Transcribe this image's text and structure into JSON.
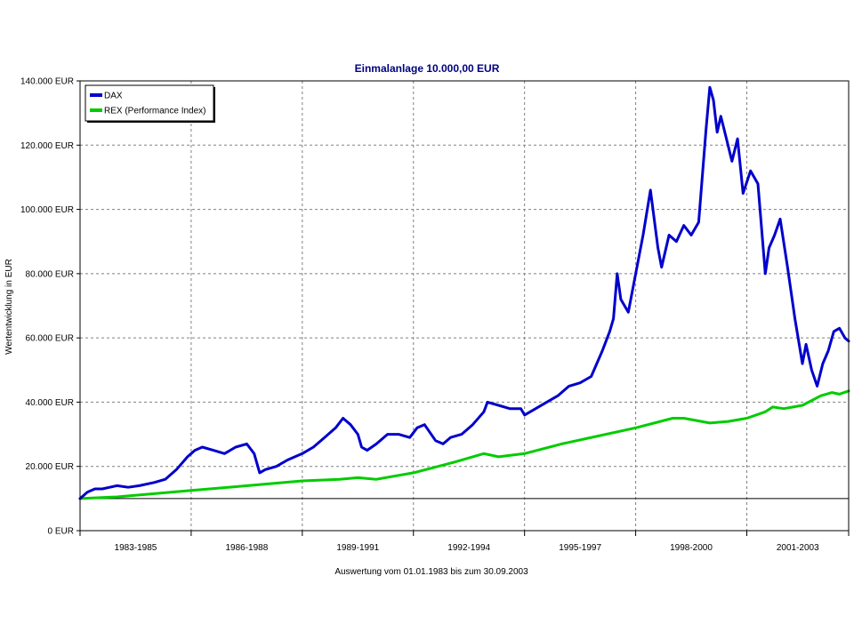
{
  "chart_data": {
    "type": "line",
    "title": "Einmalanlage 10.000,00 EUR",
    "xlabel": "Auswertung vom 01.01.1983 bis zum 30.09.2003",
    "ylabel": "Wertentwicklung in EUR",
    "ylim": [
      0,
      140000
    ],
    "xlim": [
      1983.0,
      2003.75
    ],
    "y_ticks": [
      0,
      20000,
      40000,
      60000,
      80000,
      100000,
      120000,
      140000
    ],
    "y_tick_labels": [
      "0 EUR",
      "20.000 EUR",
      "40.000 EUR",
      "60.000 EUR",
      "80.000 EUR",
      "100.000 EUR",
      "120.000 EUR",
      "140.000 EUR"
    ],
    "x_groups": [
      {
        "label": "1983-1985",
        "start": 1983,
        "end": 1986
      },
      {
        "label": "1986-1988",
        "start": 1986,
        "end": 1989
      },
      {
        "label": "1989-1991",
        "start": 1989,
        "end": 1992
      },
      {
        "label": "1992-1994",
        "start": 1992,
        "end": 1995
      },
      {
        "label": "1995-1997",
        "start": 1995,
        "end": 1998
      },
      {
        "label": "1998-2000",
        "start": 1998,
        "end": 2001
      },
      {
        "label": "2001-2003",
        "start": 2001,
        "end": 2003.75
      }
    ],
    "reference_line": 10000,
    "grid": true,
    "legend_position": "top-left",
    "series": [
      {
        "name": "DAX",
        "color": "#0000cc",
        "x": [
          1983.0,
          1983.2,
          1983.4,
          1983.6,
          1983.8,
          1984.0,
          1984.3,
          1984.6,
          1985.0,
          1985.3,
          1985.6,
          1985.9,
          1986.1,
          1986.3,
          1986.6,
          1986.9,
          1987.2,
          1987.5,
          1987.7,
          1987.85,
          1988.0,
          1988.3,
          1988.6,
          1989.0,
          1989.3,
          1989.6,
          1989.9,
          1990.1,
          1990.3,
          1990.5,
          1990.6,
          1990.75,
          1991.0,
          1991.3,
          1991.6,
          1991.9,
          1992.1,
          1992.3,
          1992.6,
          1992.8,
          1993.0,
          1993.3,
          1993.6,
          1993.9,
          1994.0,
          1994.3,
          1994.6,
          1994.9,
          1995.0,
          1995.3,
          1995.6,
          1995.9,
          1996.2,
          1996.5,
          1996.8,
          1997.1,
          1997.3,
          1997.4,
          1997.5,
          1997.6,
          1997.8,
          1998.0,
          1998.2,
          1998.4,
          1998.6,
          1998.7,
          1998.9,
          1999.1,
          1999.3,
          1999.5,
          1999.7,
          1999.9,
          2000.0,
          2000.1,
          2000.2,
          2000.3,
          2000.45,
          2000.6,
          2000.75,
          2000.9,
          2001.1,
          2001.3,
          2001.5,
          2001.6,
          2001.75,
          2001.9,
          2002.1,
          2002.3,
          2002.5,
          2002.6,
          2002.75,
          2002.9,
          2003.05,
          2003.2,
          2003.35,
          2003.5,
          2003.65,
          2003.75
        ],
        "values": [
          10000,
          12000,
          13000,
          13000,
          13500,
          14000,
          13500,
          14000,
          15000,
          16000,
          19000,
          23000,
          25000,
          26000,
          25000,
          24000,
          26000,
          27000,
          24000,
          18000,
          19000,
          20000,
          22000,
          24000,
          26000,
          29000,
          32000,
          35000,
          33000,
          30000,
          26000,
          25000,
          27000,
          30000,
          30000,
          29000,
          32000,
          33000,
          28000,
          27000,
          29000,
          30000,
          33000,
          37000,
          40000,
          39000,
          38000,
          38000,
          36000,
          38000,
          40000,
          42000,
          45000,
          46000,
          48000,
          56000,
          62000,
          66000,
          80000,
          72000,
          68000,
          80000,
          92000,
          106000,
          88000,
          82000,
          92000,
          90000,
          95000,
          92000,
          96000,
          125000,
          138000,
          134000,
          124000,
          129000,
          122000,
          115000,
          122000,
          105000,
          112000,
          108000,
          80000,
          88000,
          92000,
          97000,
          82000,
          66000,
          52000,
          58000,
          50000,
          45000,
          52000,
          56000,
          62000,
          63000,
          60000,
          59000
        ]
      },
      {
        "name": "REX (Performance Index)",
        "color": "#00cc00",
        "x": [
          1983.0,
          1984.0,
          1985.0,
          1986.0,
          1987.0,
          1988.0,
          1989.0,
          1990.0,
          1990.5,
          1991.0,
          1992.0,
          1993.0,
          1993.9,
          1994.3,
          1995.0,
          1996.0,
          1997.0,
          1998.0,
          1999.0,
          1999.3,
          2000.0,
          2000.5,
          2001.0,
          2001.5,
          2001.7,
          2002.0,
          2002.5,
          2003.0,
          2003.3,
          2003.5,
          2003.75
        ],
        "values": [
          10000,
          10500,
          11500,
          12500,
          13500,
          14500,
          15500,
          16000,
          16500,
          16000,
          18000,
          21000,
          24000,
          23000,
          24000,
          27000,
          29500,
          32000,
          35000,
          35000,
          33500,
          34000,
          35000,
          37000,
          38500,
          38000,
          39000,
          42000,
          43000,
          42500,
          43500
        ]
      }
    ]
  }
}
